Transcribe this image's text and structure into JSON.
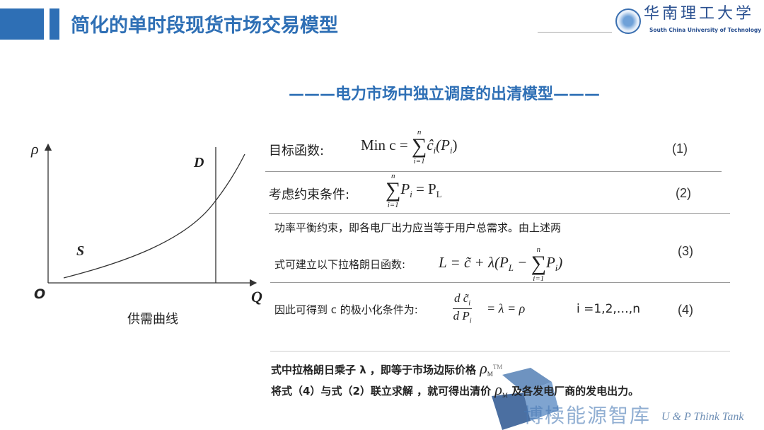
{
  "header": {
    "title": "简化的单时段现货市场交易模型",
    "logo_cn": "华南理工大学",
    "logo_en": "South China University of Technology"
  },
  "subtitle": "———电力市场中独立调度的出清模型———",
  "graph": {
    "y_label": "ρ",
    "x_label": "Q",
    "origin": "O",
    "demand_label": "D",
    "supply_label": "S",
    "caption": "供需曲线"
  },
  "rows": [
    {
      "label": "目标函数:",
      "formula": {
        "lhs": "Min c =",
        "sum_top": "n",
        "sum_bot": "i=1",
        "body": "ĉ",
        "sub": "i",
        "arg": "(P",
        "arg_sub": "i",
        ")": ")"
      },
      "number": "(1)"
    },
    {
      "label": "考虑约束条件:",
      "formula": {
        "sum_top": "n",
        "sum_bot": "i=1",
        "body": "P",
        "sub": "i",
        "rhs": "= P",
        "rhs_sub": "L"
      },
      "number": "(2)"
    },
    {
      "line1": "功率平衡约束，即各电厂出力应当等于用户总需求。由上述两",
      "line2": "式可建立以下拉格朗日函数:",
      "formula": {
        "lhs": "L = c̃ + λ(P",
        "lsub": "L",
        "minus": " −",
        "sum_top": "n",
        "sum_bot": "i=1",
        "body": "P",
        "sub": "i",
        "close": ")"
      },
      "number": "(3)"
    },
    {
      "label": "因此可得到 c 的极小化条件为:",
      "formula": {
        "num": "d c̃",
        "num_sub": "i",
        "den": "d P",
        "den_sub": "i",
        "rhs": "= λ = ρ"
      },
      "range": "i =1,2,…,n",
      "number": "(4)"
    }
  ],
  "notes": [
    {
      "text": "式中拉格朗日乘子 λ ，即等于市场边际价格",
      "sym": "ρ",
      "sym_sub": "M",
      "sym_sup": "TM"
    },
    {
      "text": "将式（4）与式（2）联立求解 ，就可得出清价",
      "sym": "ρ",
      "sym_sub": "M",
      "tail": " 及各发电厂商的发电出力。"
    }
  ],
  "watermark": {
    "cn": "博椟能源智库",
    "en": "U & P Think Tank"
  }
}
